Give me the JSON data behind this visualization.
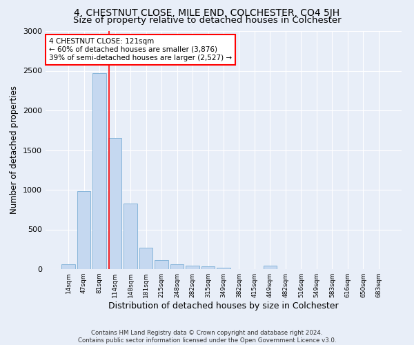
{
  "title": "4, CHESTNUT CLOSE, MILE END, COLCHESTER, CO4 5JH",
  "subtitle": "Size of property relative to detached houses in Colchester",
  "xlabel": "Distribution of detached houses by size in Colchester",
  "ylabel": "Number of detached properties",
  "categories": [
    "14sqm",
    "47sqm",
    "81sqm",
    "114sqm",
    "148sqm",
    "181sqm",
    "215sqm",
    "248sqm",
    "282sqm",
    "315sqm",
    "349sqm",
    "382sqm",
    "415sqm",
    "449sqm",
    "482sqm",
    "516sqm",
    "549sqm",
    "583sqm",
    "616sqm",
    "650sqm",
    "683sqm"
  ],
  "values": [
    60,
    980,
    2470,
    1650,
    830,
    270,
    115,
    60,
    45,
    35,
    20,
    0,
    0,
    40,
    0,
    0,
    0,
    0,
    0,
    0,
    0
  ],
  "bar_color": "#c5d8f0",
  "bar_edge_color": "#7aaed6",
  "vline_color": "red",
  "vline_pos": 2.6,
  "annotation_text": "4 CHESTNUT CLOSE: 121sqm\n← 60% of detached houses are smaller (3,876)\n39% of semi-detached houses are larger (2,527) →",
  "annotation_box_color": "white",
  "annotation_box_edge_color": "red",
  "ylim": [
    0,
    3000
  ],
  "yticks": [
    0,
    500,
    1000,
    1500,
    2000,
    2500,
    3000
  ],
  "bg_color": "#e8eef8",
  "plot_bg_color": "#e8eef8",
  "footer": "Contains HM Land Registry data © Crown copyright and database right 2024.\nContains public sector information licensed under the Open Government Licence v3.0.",
  "title_fontsize": 10,
  "subtitle_fontsize": 9.5,
  "xlabel_fontsize": 9,
  "ylabel_fontsize": 8.5
}
